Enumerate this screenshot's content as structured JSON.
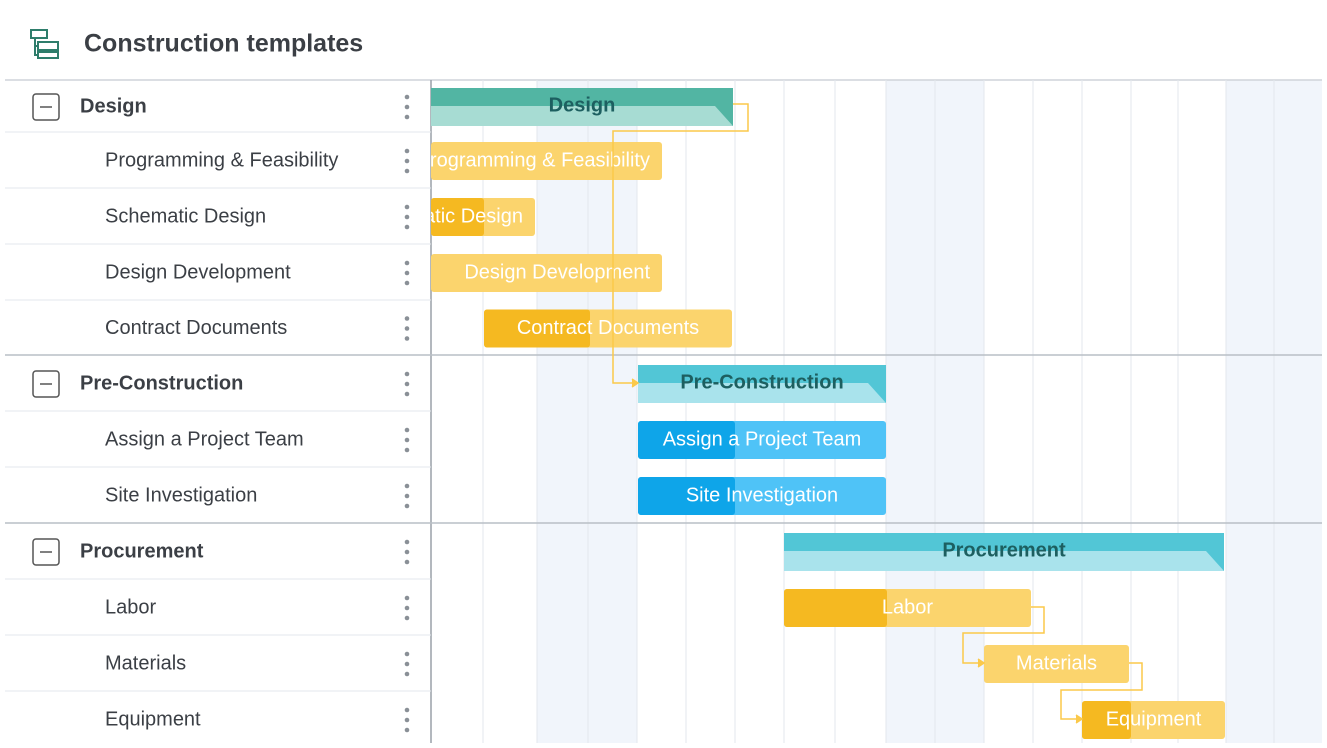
{
  "header": {
    "title": "Construction templates"
  },
  "groups": [
    {
      "name": "Design",
      "tasks": [
        "Programming & Feasibility",
        "Schematic Design",
        "Design Development",
        "Contract Documents"
      ]
    },
    {
      "name": "Pre-Construction",
      "tasks": [
        "Assign a Project Team",
        "Site Investigation"
      ]
    },
    {
      "name": "Procurement",
      "tasks": [
        "Labor",
        "Materials",
        "Equipment"
      ]
    }
  ]
}
